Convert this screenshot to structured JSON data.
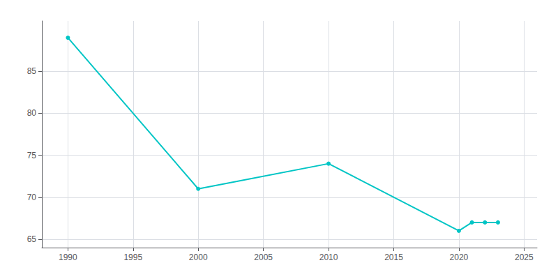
{
  "chart_data": {
    "type": "line",
    "x": [
      1990,
      2000,
      2010,
      2020,
      2021,
      2022,
      2023
    ],
    "values": [
      89,
      71,
      74,
      66,
      67,
      67,
      67
    ],
    "color": "#00C5C5",
    "marker": "circle",
    "xlim": [
      1988,
      2026
    ],
    "xticks": [
      1990,
      1995,
      2000,
      2005,
      2010,
      2015,
      2020,
      2025
    ],
    "ylim": [
      64.0,
      91.0
    ],
    "yticks": [
      65,
      70,
      75,
      80,
      85
    ],
    "grid": true
  }
}
